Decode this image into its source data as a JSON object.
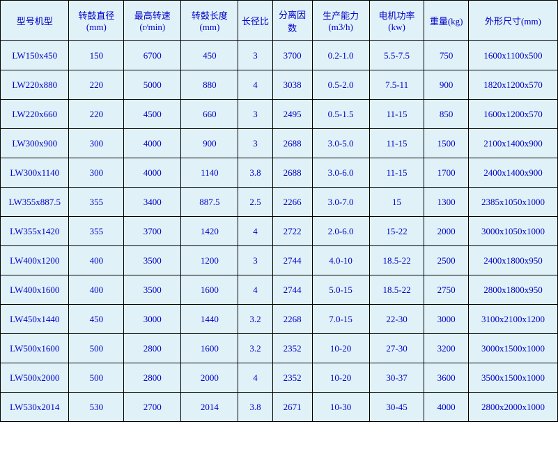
{
  "table": {
    "background_color": "#e0f2f7",
    "text_color": "#0000cc",
    "border_color": "#000000",
    "header_fontsize": 13,
    "cell_fontsize": 13,
    "columns": [
      {
        "label": "型号机型",
        "width": 90,
        "align": "center"
      },
      {
        "label": "转鼓直径(mm)",
        "width": 72,
        "align": "center"
      },
      {
        "label": "最高转速(r/min)",
        "width": 75,
        "align": "center"
      },
      {
        "label": "转鼓长度(mm)",
        "width": 75,
        "align": "center"
      },
      {
        "label": "长径比",
        "width": 45,
        "align": "center"
      },
      {
        "label": "分离因数",
        "width": 52,
        "align": "center"
      },
      {
        "label": "生产能力(m3/h)",
        "width": 75,
        "align": "center"
      },
      {
        "label": "电机功率(kw)",
        "width": 72,
        "align": "center"
      },
      {
        "label": "重量(kg)",
        "width": 58,
        "align": "center"
      },
      {
        "label": "外形尺寸(mm)",
        "width": 117,
        "align": "center"
      }
    ],
    "rows": [
      [
        "LW150x450",
        "150",
        "6700",
        "450",
        "3",
        "3700",
        "0.2-1.0",
        "5.5-7.5",
        "750",
        "1600x1100x500"
      ],
      [
        "LW220x880",
        "220",
        "5000",
        "880",
        "4",
        "3038",
        "0.5-2.0",
        "7.5-11",
        "900",
        "1820x1200x570"
      ],
      [
        "LW220x660",
        "220",
        "4500",
        "660",
        "3",
        "2495",
        "0.5-1.5",
        "11-15",
        "850",
        "1600x1200x570"
      ],
      [
        "LW300x900",
        "300",
        "4000",
        "900",
        "3",
        "2688",
        "3.0-5.0",
        "11-15",
        "1500",
        "2100x1400x900"
      ],
      [
        "LW300x1140",
        "300",
        "4000",
        "1140",
        "3.8",
        "2688",
        "3.0-6.0",
        "11-15",
        "1700",
        "2400x1400x900"
      ],
      [
        "LW355x887.5",
        "355",
        "3400",
        "887.5",
        "2.5",
        "2266",
        "3.0-7.0",
        "15",
        "1300",
        "2385x1050x1000"
      ],
      [
        "LW355x1420",
        "355",
        "3700",
        "1420",
        "4",
        "2722",
        "2.0-6.0",
        "15-22",
        "2000",
        "3000x1050x1000"
      ],
      [
        "LW400x1200",
        "400",
        "3500",
        "1200",
        "3",
        "2744",
        "4.0-10",
        "18.5-22",
        "2500",
        "2400x1800x950"
      ],
      [
        "LW400x1600",
        "400",
        "3500",
        "1600",
        "4",
        "2744",
        "5.0-15",
        "18.5-22",
        "2750",
        "2800x1800x950"
      ],
      [
        "LW450x1440",
        "450",
        "3000",
        "1440",
        "3.2",
        "2268",
        "7.0-15",
        "22-30",
        "3000",
        "3100x2100x1200"
      ],
      [
        "LW500x1600",
        "500",
        "2800",
        "1600",
        "3.2",
        "2352",
        "10-20",
        "27-30",
        "3200",
        "3000x1500x1000"
      ],
      [
        "LW500x2000",
        "500",
        "2800",
        "2000",
        "4",
        "2352",
        "10-20",
        "30-37",
        "3600",
        "3500x1500x1000"
      ],
      [
        "LW530x2014",
        "530",
        "2700",
        "2014",
        "3.8",
        "2671",
        "10-30",
        "30-45",
        "4000",
        "2800x2000x1000"
      ]
    ]
  }
}
